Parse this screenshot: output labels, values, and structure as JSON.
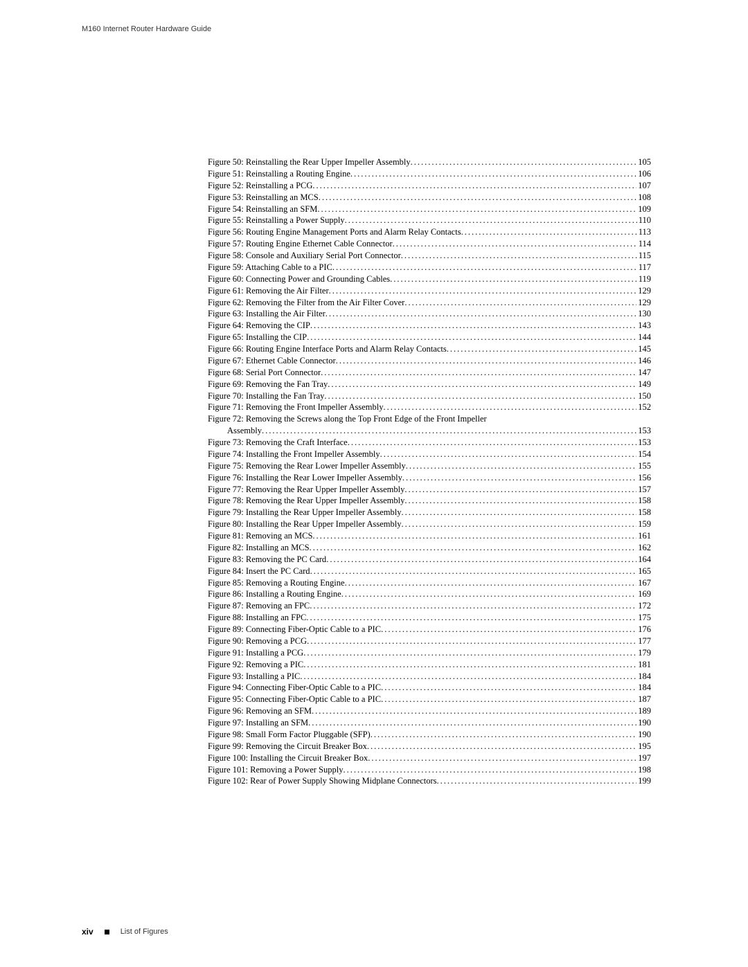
{
  "header": "M160 Internet Router Hardware Guide",
  "entries": [
    {
      "label": "Figure 50: Reinstalling the Rear Upper Impeller Assembly",
      "page": "105",
      "indent": false
    },
    {
      "label": "Figure 51: Reinstalling a Routing Engine",
      "page": "106",
      "indent": false
    },
    {
      "label": "Figure 52: Reinstalling a PCG",
      "page": "107",
      "indent": false
    },
    {
      "label": "Figure 53: Reinstalling an MCS",
      "page": "108",
      "indent": false
    },
    {
      "label": "Figure 54: Reinstalling an SFM",
      "page": "109",
      "indent": false
    },
    {
      "label": "Figure 55: Reinstalling a Power Supply",
      "page": "110",
      "indent": false
    },
    {
      "label": "Figure 56: Routing Engine Management Ports and Alarm Relay Contacts",
      "page": "113",
      "indent": false
    },
    {
      "label": "Figure 57: Routing Engine Ethernet Cable Connector",
      "page": "114",
      "indent": false
    },
    {
      "label": "Figure 58: Console and Auxiliary Serial Port Connector",
      "page": "115",
      "indent": false
    },
    {
      "label": "Figure 59: Attaching Cable to a PIC",
      "page": "117",
      "indent": false
    },
    {
      "label": "Figure 60: Connecting Power and Grounding Cables",
      "page": "119",
      "indent": false
    },
    {
      "label": "Figure 61: Removing the Air Filter",
      "page": "129",
      "indent": false
    },
    {
      "label": "Figure 62: Removing the Filter from the Air Filter Cover",
      "page": "129",
      "indent": false
    },
    {
      "label": "Figure 63: Installing the Air Filter",
      "page": "130",
      "indent": false
    },
    {
      "label": "Figure 64: Removing the CIP",
      "page": "143",
      "indent": false
    },
    {
      "label": "Figure 65: Installing the CIP",
      "page": "144",
      "indent": false
    },
    {
      "label": "Figure 66: Routing Engine Interface Ports and Alarm Relay Contacts",
      "page": "145",
      "indent": false
    },
    {
      "label": "Figure 67: Ethernet Cable Connector",
      "page": "146",
      "indent": false
    },
    {
      "label": "Figure 68: Serial Port Connector",
      "page": "147",
      "indent": false
    },
    {
      "label": "Figure 69: Removing the Fan Tray",
      "page": "149",
      "indent": false
    },
    {
      "label": "Figure 70: Installing the Fan Tray",
      "page": "150",
      "indent": false
    },
    {
      "label": "Figure 71: Removing the Front Impeller Assembly",
      "page": "152",
      "indent": false
    },
    {
      "label": "Figure 72: Removing the Screws along the Top Front Edge of the Front Impeller",
      "page": "",
      "indent": false,
      "nodots": true
    },
    {
      "label": "Assembly",
      "page": "153",
      "indent": true
    },
    {
      "label": "Figure 73: Removing the Craft Interface",
      "page": "153",
      "indent": false
    },
    {
      "label": "Figure 74: Installing the Front Impeller Assembly",
      "page": "154",
      "indent": false
    },
    {
      "label": "Figure 75: Removing the Rear Lower Impeller Assembly",
      "page": "155",
      "indent": false
    },
    {
      "label": "Figure 76: Installing the Rear Lower Impeller Assembly",
      "page": "156",
      "indent": false
    },
    {
      "label": "Figure 77: Removing the Rear Upper Impeller Assembly",
      "page": "157",
      "indent": false
    },
    {
      "label": "Figure 78: Removing the Rear Upper Impeller Assembly",
      "page": "158",
      "indent": false
    },
    {
      "label": "Figure 79: Installing the Rear Upper Impeller Assembly",
      "page": "158",
      "indent": false
    },
    {
      "label": "Figure 80: Installing the Rear Upper Impeller Assembly",
      "page": "159",
      "indent": false
    },
    {
      "label": "Figure 81: Removing an MCS",
      "page": "161",
      "indent": false
    },
    {
      "label": "Figure 82: Installing an MCS",
      "page": "162",
      "indent": false
    },
    {
      "label": "Figure 83: Removing the PC Card",
      "page": "164",
      "indent": false
    },
    {
      "label": "Figure 84: Insert the PC Card",
      "page": "165",
      "indent": false
    },
    {
      "label": "Figure 85: Removing a Routing Engine",
      "page": "167",
      "indent": false
    },
    {
      "label": "Figure 86: Installing a Routing Engine",
      "page": "169",
      "indent": false
    },
    {
      "label": "Figure 87: Removing an FPC",
      "page": "172",
      "indent": false
    },
    {
      "label": "Figure 88: Installing an FPC",
      "page": "175",
      "indent": false
    },
    {
      "label": "Figure 89: Connecting Fiber-Optic Cable to a PIC",
      "page": "176",
      "indent": false
    },
    {
      "label": "Figure 90: Removing a PCG",
      "page": "177",
      "indent": false
    },
    {
      "label": "Figure 91: Installing a PCG",
      "page": "179",
      "indent": false
    },
    {
      "label": "Figure 92: Removing a PIC",
      "page": "181",
      "indent": false
    },
    {
      "label": "Figure 93: Installing a PIC",
      "page": "184",
      "indent": false
    },
    {
      "label": "Figure 94: Connecting Fiber-Optic Cable to a PIC",
      "page": "184",
      "indent": false
    },
    {
      "label": "Figure 95: Connecting Fiber-Optic Cable to a PIC",
      "page": "187",
      "indent": false
    },
    {
      "label": "Figure 96: Removing an SFM",
      "page": "189",
      "indent": false
    },
    {
      "label": "Figure 97: Installing an SFM",
      "page": "190",
      "indent": false
    },
    {
      "label": "Figure 98: Small Form Factor Pluggable (SFP)",
      "page": "190",
      "indent": false
    },
    {
      "label": "Figure 99: Removing the Circuit Breaker Box",
      "page": "195",
      "indent": false
    },
    {
      "label": "Figure 100: Installing the Circuit Breaker Box",
      "page": "197",
      "indent": false
    },
    {
      "label": "Figure 101: Removing a Power Supply",
      "page": "198",
      "indent": false
    },
    {
      "label": "Figure 102: Rear of Power Supply Showing Midplane Connectors",
      "page": "199",
      "indent": false
    }
  ],
  "footer": {
    "pagenum": "xiv",
    "section": "List of Figures"
  }
}
